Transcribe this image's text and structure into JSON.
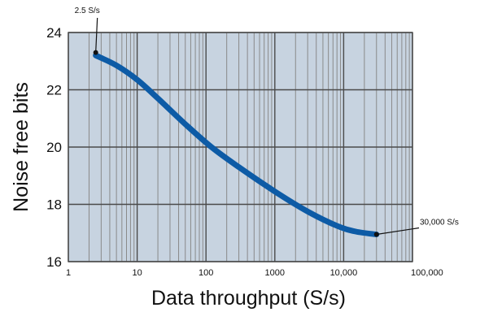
{
  "chart_data": {
    "type": "line",
    "xlabel": "Data throughput (S/s)",
    "ylabel": "Noise free bits",
    "x_scale": "log",
    "xlim": [
      1,
      100000
    ],
    "ylim": [
      16,
      24
    ],
    "grid": true,
    "xticks": [
      {
        "value": 1,
        "label": "1"
      },
      {
        "value": 10,
        "label": "10"
      },
      {
        "value": 100,
        "label": "100"
      },
      {
        "value": 1000,
        "label": "1000"
      },
      {
        "value": 10000,
        "label": "10,000"
      },
      {
        "value": 100000,
        "label": "100,000"
      }
    ],
    "yticks": [
      {
        "value": 16,
        "label": "16"
      },
      {
        "value": 18,
        "label": "18"
      },
      {
        "value": 20,
        "label": "20"
      },
      {
        "value": 22,
        "label": "22"
      },
      {
        "value": 24,
        "label": "24"
      }
    ],
    "series": [
      {
        "color": "#0d5ba6",
        "x": [
          2.5,
          5,
          10,
          20,
          50,
          120,
          300,
          1000,
          3000,
          8000,
          15000,
          30000
        ],
        "y": [
          23.2,
          22.85,
          22.35,
          21.7,
          20.8,
          20.0,
          19.3,
          18.45,
          17.75,
          17.25,
          17.05,
          16.95
        ]
      }
    ],
    "annotations": [
      {
        "text": "2.5 S/s",
        "x": 2.5,
        "y": 23.3
      },
      {
        "text": "30,000 S/s",
        "x": 30000,
        "y": 16.95
      }
    ]
  },
  "colors": {
    "plot_background": "#c7d3e0",
    "major_grid": "#4a4a4a",
    "minor_grid": "#8a8a8a",
    "line": "#0d5ba6"
  }
}
